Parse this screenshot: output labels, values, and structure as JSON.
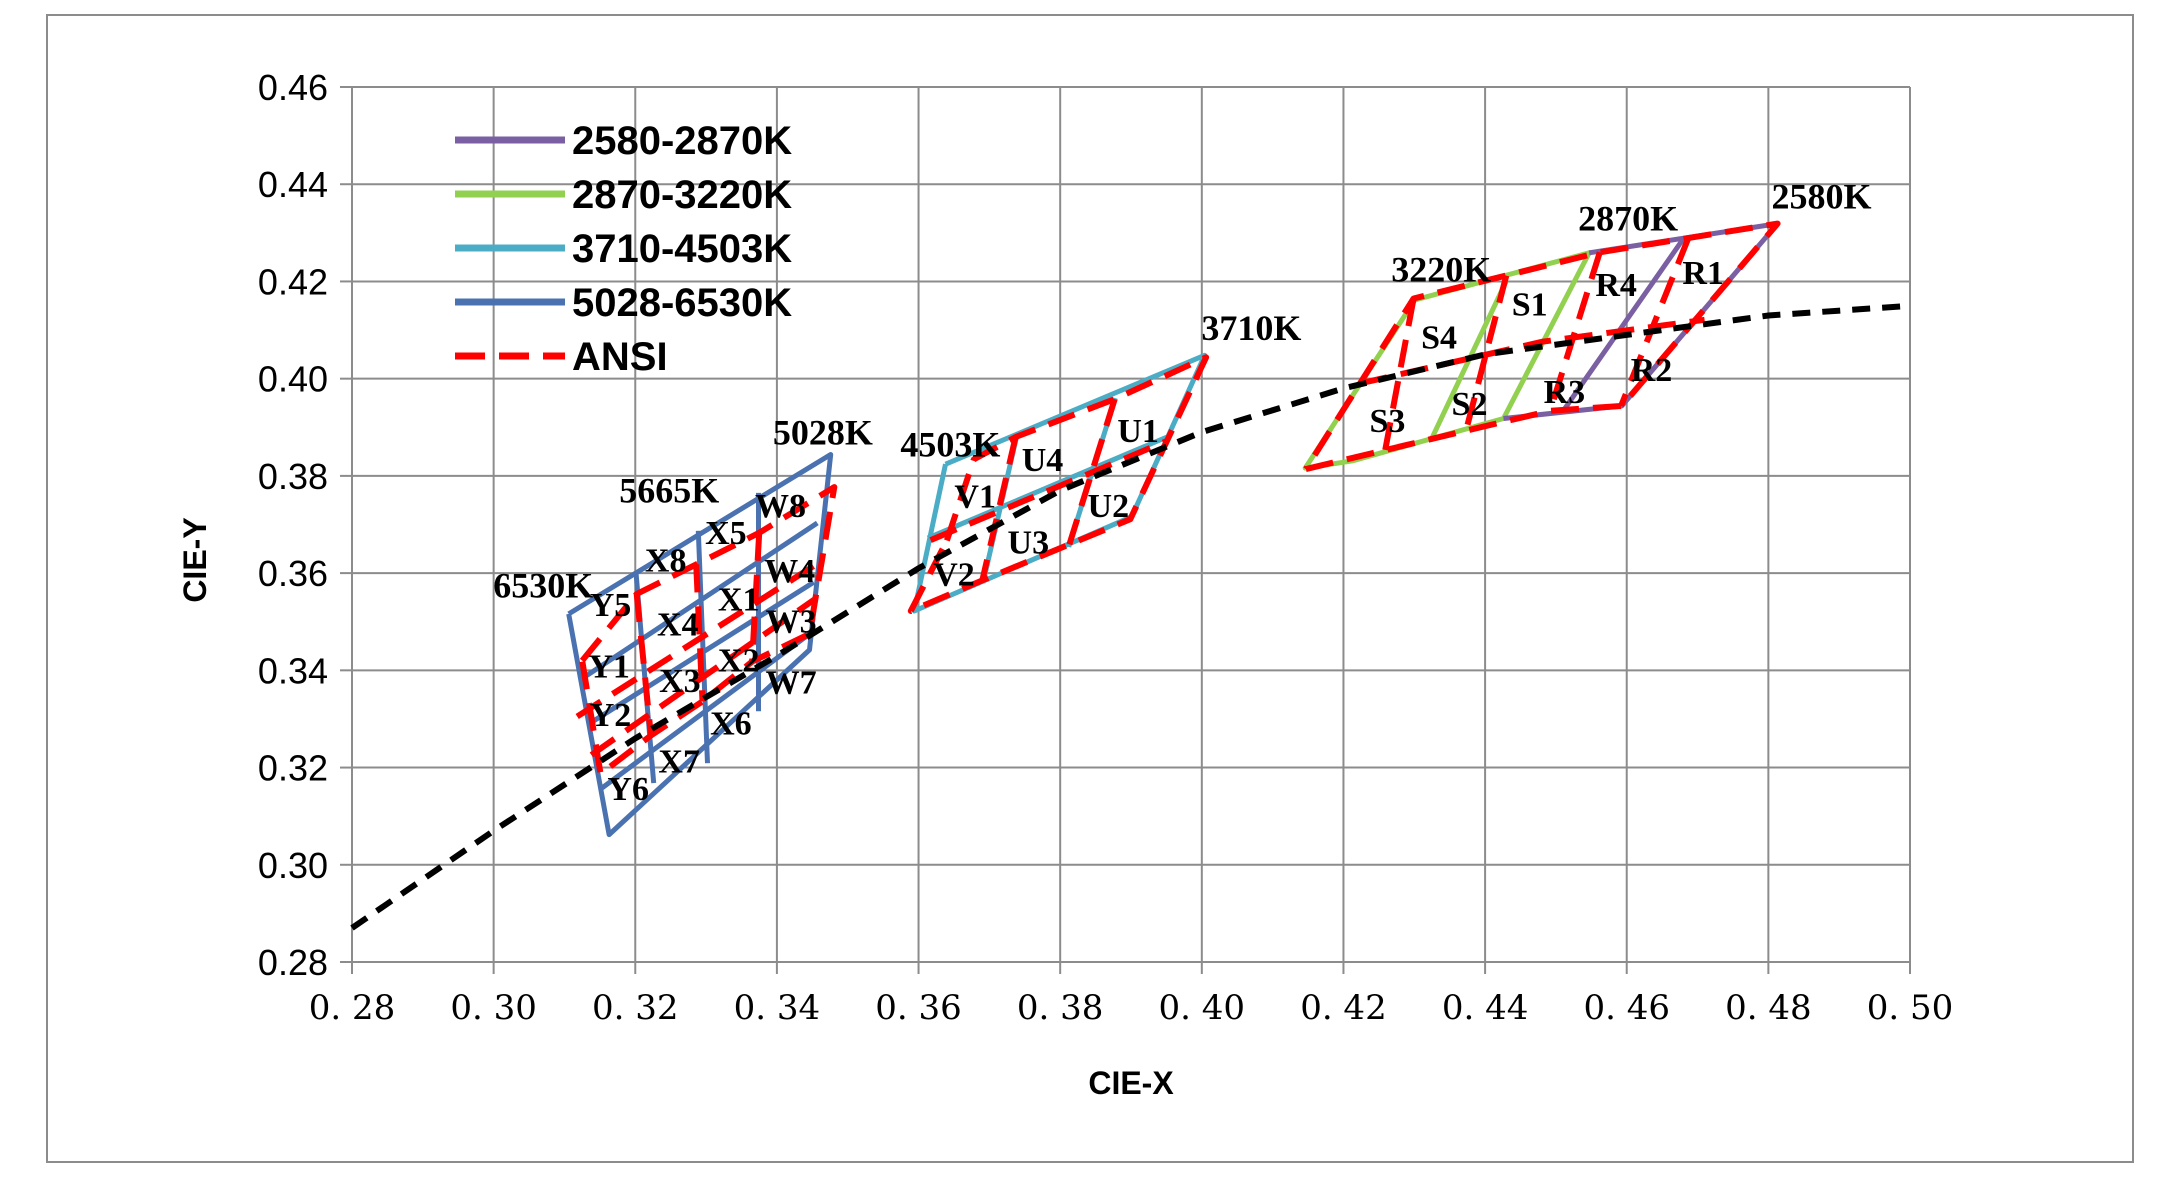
{
  "chart_data": {
    "type": "line",
    "xlabel": "CIE-X",
    "ylabel": "CIE-Y",
    "xlim": [
      0.28,
      0.5
    ],
    "ylim": [
      0.28,
      0.46
    ],
    "x_ticks": [
      "0.28",
      "0.30",
      "0.32",
      "0.34",
      "0.36",
      "0.38",
      "0.40",
      "0.42",
      "0.44",
      "0.46",
      "0.48",
      "0.50"
    ],
    "y_ticks": [
      "0.28",
      "0.30",
      "0.32",
      "0.34",
      "0.36",
      "0.38",
      "0.40",
      "0.42",
      "0.44",
      "0.46"
    ],
    "x_tick_labels": [
      "0. 28",
      "0. 30",
      "0. 32",
      "0. 34",
      "0. 36",
      "0. 38",
      "0. 40",
      "0. 42",
      "0. 44",
      "0. 46",
      "0. 48",
      "0. 50"
    ],
    "grid": true,
    "legend_position": "top-left",
    "legend": [
      {
        "name": "2580-2870K",
        "color": "#7b5fa3",
        "dashed": false
      },
      {
        "name": "2870-3220K",
        "color": "#92d050",
        "dashed": false
      },
      {
        "name": "3710-4503K",
        "color": "#4bacc6",
        "dashed": false
      },
      {
        "name": "5028-6530K",
        "color": "#4a72b0",
        "dashed": false
      },
      {
        "name": "ANSI",
        "color": "#ff0000",
        "dashed": true
      }
    ],
    "planckian_locus": {
      "color": "#000000",
      "points": [
        [
          0.28,
          0.287
        ],
        [
          0.3,
          0.307
        ],
        [
          0.32,
          0.326
        ],
        [
          0.34,
          0.343
        ],
        [
          0.36,
          0.361
        ],
        [
          0.38,
          0.377
        ],
        [
          0.4,
          0.389
        ],
        [
          0.42,
          0.398
        ],
        [
          0.44,
          0.405
        ],
        [
          0.46,
          0.409
        ],
        [
          0.48,
          0.413
        ],
        [
          0.5,
          0.415
        ]
      ]
    },
    "series": [
      {
        "name": "5028-6530K",
        "color": "#4a72b0",
        "polylines": [
          [
            [
              0.3106,
              0.3516
            ],
            [
              0.3476,
              0.3844
            ],
            [
              0.3446,
              0.3442
            ],
            [
              0.3163,
              0.3062
            ],
            [
              0.3106,
              0.3516
            ]
          ],
          [
            [
              0.3201,
              0.3601
            ],
            [
              0.3226,
              0.3168
            ]
          ],
          [
            [
              0.3289,
              0.3687
            ],
            [
              0.3302,
              0.3209
            ]
          ],
          [
            [
              0.3374,
              0.3765
            ],
            [
              0.3374,
              0.3316
            ]
          ],
          [
            [
              0.3126,
              0.3384
            ],
            [
              0.3457,
              0.3703
            ]
          ],
          [
            [
              0.3137,
              0.3292
            ],
            [
              0.3452,
              0.3581
            ]
          ],
          [
            [
              0.3153,
              0.3158
            ],
            [
              0.3449,
              0.3478
            ]
          ]
        ]
      },
      {
        "name": "3710-4503K",
        "color": "#4bacc6",
        "polylines": [
          [
            [
              0.3638,
              0.3824
            ],
            [
              0.4004,
              0.4048
            ],
            [
              0.3901,
              0.3716
            ],
            [
              0.3594,
              0.3522
            ],
            [
              0.3638,
              0.3824
            ]
          ],
          [
            [
              0.3738,
              0.3878
            ],
            [
              0.3691,
              0.358
            ]
          ],
          [
            [
              0.3878,
              0.396
            ],
            [
              0.3812,
              0.3654
            ]
          ],
          [
            [
              0.3613,
              0.3672
            ],
            [
              0.3951,
              0.388
            ]
          ]
        ]
      },
      {
        "name": "2870-3220K",
        "color": "#92d050",
        "polylines": [
          [
            [
              0.4301,
              0.4162
            ],
            [
              0.4547,
              0.4259
            ],
            [
              0.4426,
              0.3918
            ],
            [
              0.4213,
              0.3831
            ],
            [
              0.4146,
              0.3816
            ],
            [
              0.4301,
              0.4162
            ]
          ],
          [
            [
              0.443,
              0.4201
            ],
            [
              0.4323,
              0.3872
            ]
          ]
        ]
      },
      {
        "name": "2580-2870K",
        "color": "#7b5fa3",
        "polylines": [
          [
            [
              0.4547,
              0.4259
            ],
            [
              0.4813,
              0.4319
            ],
            [
              0.4593,
              0.3944
            ],
            [
              0.4426,
              0.3918
            ]
          ],
          [
            [
              0.4681,
              0.429
            ],
            [
              0.4509,
              0.3931
            ]
          ]
        ]
      },
      {
        "name": "ANSI",
        "color": "#ff0000",
        "dashed": true,
        "polylines": [
          [
            [
              0.3125,
              0.342
            ],
            [
              0.3202,
              0.3557
            ],
            [
              0.3286,
              0.3618
            ],
            [
              0.3375,
              0.3683
            ],
            [
              0.3481,
              0.3777
            ],
            [
              0.3446,
              0.3475
            ],
            [
              0.3365,
              0.3418
            ],
            [
              0.3295,
              0.3336
            ],
            [
              0.3222,
              0.3266
            ],
            [
              0.3151,
              0.3187
            ],
            [
              0.3125,
              0.342
            ]
          ],
          [
            [
              0.3202,
              0.3557
            ],
            [
              0.3222,
              0.3266
            ]
          ],
          [
            [
              0.3286,
              0.3618
            ],
            [
              0.3295,
              0.3336
            ]
          ],
          [
            [
              0.3375,
              0.3683
            ],
            [
              0.3365,
              0.3418
            ]
          ],
          [
            [
              0.3118,
              0.3305
            ],
            [
              0.3463,
              0.3625
            ]
          ],
          [
            [
              0.3138,
              0.3226
            ],
            [
              0.3455,
              0.3548
            ]
          ],
          [
            [
              0.364,
              0.3667
            ],
            [
              0.3678,
              0.3834
            ],
            [
              0.3737,
              0.388
            ],
            [
              0.3877,
              0.3958
            ],
            [
              0.4006,
              0.4044
            ],
            [
              0.3899,
              0.3711
            ],
            [
              0.3813,
              0.3659
            ],
            [
              0.369,
              0.3585
            ],
            [
              0.3589,
              0.3522
            ],
            [
              0.364,
              0.3667
            ]
          ],
          [
            [
              0.3737,
              0.388
            ],
            [
              0.369,
              0.3585
            ]
          ],
          [
            [
              0.3877,
              0.3958
            ],
            [
              0.3813,
              0.3659
            ]
          ],
          [
            [
              0.3617,
              0.3668
            ],
            [
              0.3951,
              0.3872
            ]
          ],
          [
            [
              0.4147,
              0.3814
            ],
            [
              0.4259,
              0.3853
            ],
            [
              0.4373,
              0.3893
            ],
            [
              0.4492,
              0.3934
            ],
            [
              0.4593,
              0.3944
            ],
            [
              0.4813,
              0.4319
            ],
            [
              0.4562,
              0.426
            ],
            [
              0.4299,
              0.4165
            ],
            [
              0.4147,
              0.3814
            ]
          ],
          [
            [
              0.4299,
              0.4165
            ],
            [
              0.4259,
              0.3853
            ]
          ],
          [
            [
              0.443,
              0.4212
            ],
            [
              0.4373,
              0.3893
            ]
          ],
          [
            [
              0.4562,
              0.426
            ],
            [
              0.4492,
              0.3934
            ]
          ],
          [
            [
              0.4687,
              0.4289
            ],
            [
              0.4592,
              0.3944
            ]
          ],
          [
            [
              0.4223,
              0.399
            ],
            [
              0.4481,
              0.4076
            ],
            [
              0.471,
              0.4121
            ]
          ]
        ]
      }
    ],
    "annotations": [
      {
        "text": "5028K",
        "x": 0.3465,
        "y": 0.3865
      },
      {
        "text": "5665K",
        "x": 0.3248,
        "y": 0.3745
      },
      {
        "text": "6530K",
        "x": 0.307,
        "y": 0.355
      },
      {
        "text": "4503K",
        "x": 0.3645,
        "y": 0.384
      },
      {
        "text": "3710K",
        "x": 0.407,
        "y": 0.408
      },
      {
        "text": "3220K",
        "x": 0.4338,
        "y": 0.42
      },
      {
        "text": "2870K",
        "x": 0.4602,
        "y": 0.4305
      },
      {
        "text": "2580K",
        "x": 0.4875,
        "y": 0.435
      },
      {
        "text": "W8",
        "x": 0.3405,
        "y": 0.3715
      },
      {
        "text": "X5",
        "x": 0.3328,
        "y": 0.366
      },
      {
        "text": "X8",
        "x": 0.3243,
        "y": 0.3603
      },
      {
        "text": "Y5",
        "x": 0.3165,
        "y": 0.3512
      },
      {
        "text": "W4",
        "x": 0.3418,
        "y": 0.3582
      },
      {
        "text": "X1",
        "x": 0.3346,
        "y": 0.3523
      },
      {
        "text": "X4",
        "x": 0.326,
        "y": 0.3472
      },
      {
        "text": "Y1",
        "x": 0.3163,
        "y": 0.3385
      },
      {
        "text": "W3",
        "x": 0.342,
        "y": 0.3478
      },
      {
        "text": "X2",
        "x": 0.3346,
        "y": 0.3398
      },
      {
        "text": "X3",
        "x": 0.3263,
        "y": 0.3355
      },
      {
        "text": "Y2",
        "x": 0.3165,
        "y": 0.3285
      },
      {
        "text": "W7",
        "x": 0.342,
        "y": 0.3352
      },
      {
        "text": "X6",
        "x": 0.3335,
        "y": 0.3268
      },
      {
        "text": "X7",
        "x": 0.3262,
        "y": 0.319
      },
      {
        "text": "Y6",
        "x": 0.319,
        "y": 0.3133
      },
      {
        "text": "U1",
        "x": 0.391,
        "y": 0.387
      },
      {
        "text": "U4",
        "x": 0.3775,
        "y": 0.381
      },
      {
        "text": "V1",
        "x": 0.368,
        "y": 0.3735
      },
      {
        "text": "U2",
        "x": 0.3868,
        "y": 0.3715
      },
      {
        "text": "U3",
        "x": 0.3755,
        "y": 0.364
      },
      {
        "text": "V2",
        "x": 0.365,
        "y": 0.3575
      },
      {
        "text": "R1",
        "x": 0.4708,
        "y": 0.4195
      },
      {
        "text": "R4",
        "x": 0.4585,
        "y": 0.417
      },
      {
        "text": "S1",
        "x": 0.4463,
        "y": 0.413
      },
      {
        "text": "S4",
        "x": 0.4335,
        "y": 0.4062
      },
      {
        "text": "R2",
        "x": 0.4635,
        "y": 0.3995
      },
      {
        "text": "R3",
        "x": 0.4512,
        "y": 0.395
      },
      {
        "text": "S2",
        "x": 0.4378,
        "y": 0.3925
      },
      {
        "text": "S3",
        "x": 0.4262,
        "y": 0.389
      }
    ]
  }
}
